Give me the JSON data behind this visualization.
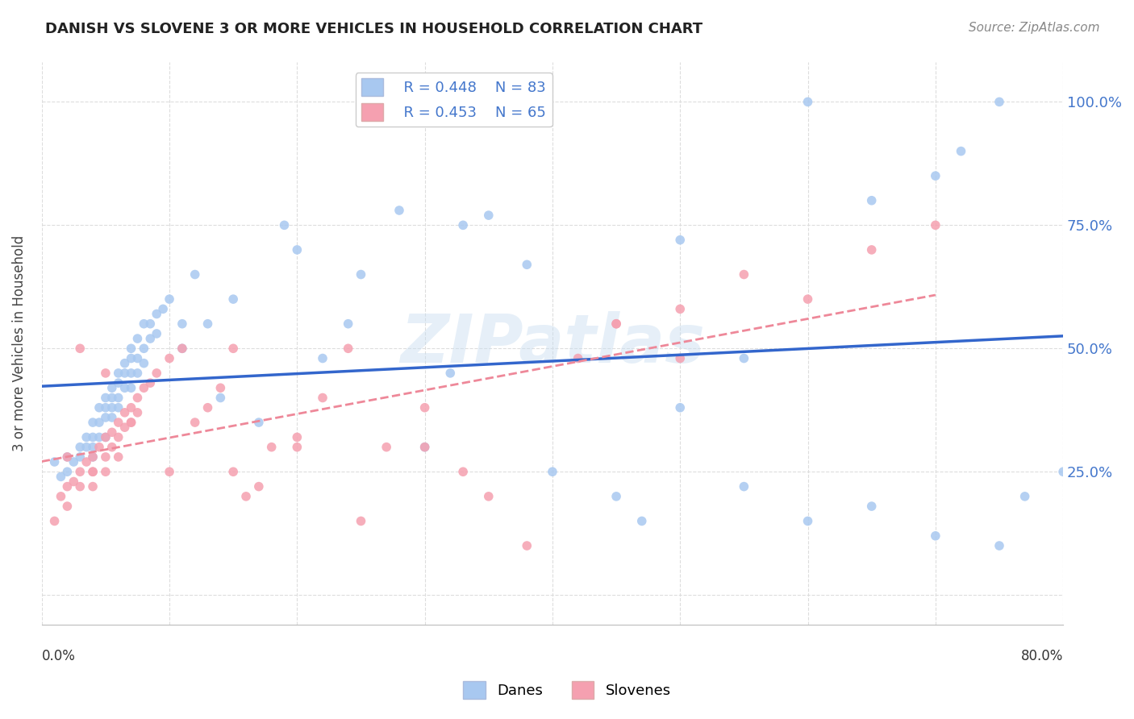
{
  "title": "DANISH VS SLOVENE 3 OR MORE VEHICLES IN HOUSEHOLD CORRELATION CHART",
  "source": "Source: ZipAtlas.com",
  "ylabel": "3 or more Vehicles in Household",
  "xlim": [
    0.0,
    80.0
  ],
  "ylim": [
    -6.0,
    108.0
  ],
  "yticks": [
    0.0,
    25.0,
    50.0,
    75.0,
    100.0
  ],
  "ytick_labels": [
    "",
    "25.0%",
    "50.0%",
    "75.0%",
    "100.0%"
  ],
  "dane_color": "#a8c8f0",
  "slovene_color": "#f5a0b0",
  "dane_line_color": "#3366cc",
  "slovene_line_color": "#ee8899",
  "legend_dane_r": "R = 0.448",
  "legend_dane_n": "N = 83",
  "legend_slovene_r": "R = 0.453",
  "legend_slovene_n": "N = 65",
  "watermark": "ZIPatlas",
  "dane_scatter_x": [
    1.0,
    1.5,
    2.0,
    2.0,
    2.5,
    3.0,
    3.0,
    3.5,
    3.5,
    4.0,
    4.0,
    4.0,
    4.0,
    4.5,
    4.5,
    4.5,
    5.0,
    5.0,
    5.0,
    5.0,
    5.5,
    5.5,
    5.5,
    5.5,
    6.0,
    6.0,
    6.0,
    6.0,
    6.5,
    6.5,
    6.5,
    7.0,
    7.0,
    7.0,
    7.0,
    7.5,
    7.5,
    7.5,
    8.0,
    8.0,
    8.0,
    8.5,
    8.5,
    9.0,
    9.0,
    9.5,
    10.0,
    11.0,
    11.0,
    12.0,
    13.0,
    14.0,
    15.0,
    17.0,
    19.0,
    20.0,
    22.0,
    24.0,
    25.0,
    28.0,
    30.0,
    33.0,
    35.0,
    38.0,
    40.0,
    45.0,
    47.0,
    50.0,
    55.0,
    60.0,
    65.0,
    70.0,
    72.0,
    75.0,
    32.0,
    50.0,
    55.0,
    60.0,
    65.0,
    70.0,
    75.0,
    77.0,
    80.0
  ],
  "dane_scatter_y": [
    27.0,
    24.0,
    28.0,
    25.0,
    27.0,
    30.0,
    28.0,
    32.0,
    30.0,
    35.0,
    32.0,
    30.0,
    28.0,
    38.0,
    35.0,
    32.0,
    40.0,
    38.0,
    36.0,
    32.0,
    42.0,
    40.0,
    38.0,
    36.0,
    45.0,
    43.0,
    40.0,
    38.0,
    47.0,
    45.0,
    42.0,
    50.0,
    48.0,
    45.0,
    42.0,
    52.0,
    48.0,
    45.0,
    55.0,
    50.0,
    47.0,
    55.0,
    52.0,
    57.0,
    53.0,
    58.0,
    60.0,
    55.0,
    50.0,
    65.0,
    55.0,
    40.0,
    60.0,
    35.0,
    75.0,
    70.0,
    48.0,
    55.0,
    65.0,
    78.0,
    30.0,
    75.0,
    77.0,
    67.0,
    25.0,
    20.0,
    15.0,
    72.0,
    48.0,
    100.0,
    80.0,
    85.0,
    90.0,
    100.0,
    45.0,
    38.0,
    22.0,
    15.0,
    18.0,
    12.0,
    10.0,
    20.0,
    25.0
  ],
  "slovene_scatter_x": [
    1.0,
    1.5,
    2.0,
    2.0,
    2.5,
    3.0,
    3.0,
    3.5,
    4.0,
    4.0,
    4.0,
    4.5,
    5.0,
    5.0,
    5.0,
    5.5,
    5.5,
    6.0,
    6.0,
    6.5,
    6.5,
    7.0,
    7.0,
    7.5,
    7.5,
    8.0,
    8.5,
    9.0,
    10.0,
    11.0,
    12.0,
    13.0,
    14.0,
    15.0,
    16.0,
    17.0,
    18.0,
    20.0,
    22.0,
    24.0,
    25.0,
    27.0,
    30.0,
    33.0,
    35.0,
    38.0,
    42.0,
    45.0,
    50.0,
    55.0,
    60.0,
    65.0,
    70.0,
    45.0,
    50.0,
    30.0,
    20.0,
    15.0,
    10.0,
    7.0,
    5.0,
    3.0,
    2.0,
    4.0,
    6.0
  ],
  "slovene_scatter_y": [
    15.0,
    20.0,
    22.0,
    18.0,
    23.0,
    25.0,
    22.0,
    27.0,
    28.0,
    25.0,
    22.0,
    30.0,
    32.0,
    28.0,
    25.0,
    33.0,
    30.0,
    35.0,
    32.0,
    37.0,
    34.0,
    38.0,
    35.0,
    40.0,
    37.0,
    42.0,
    43.0,
    45.0,
    48.0,
    50.0,
    35.0,
    38.0,
    42.0,
    50.0,
    20.0,
    22.0,
    30.0,
    32.0,
    40.0,
    50.0,
    15.0,
    30.0,
    30.0,
    25.0,
    20.0,
    10.0,
    48.0,
    55.0,
    58.0,
    65.0,
    60.0,
    70.0,
    75.0,
    55.0,
    48.0,
    38.0,
    30.0,
    25.0,
    25.0,
    35.0,
    45.0,
    50.0,
    28.0,
    25.0,
    28.0
  ]
}
